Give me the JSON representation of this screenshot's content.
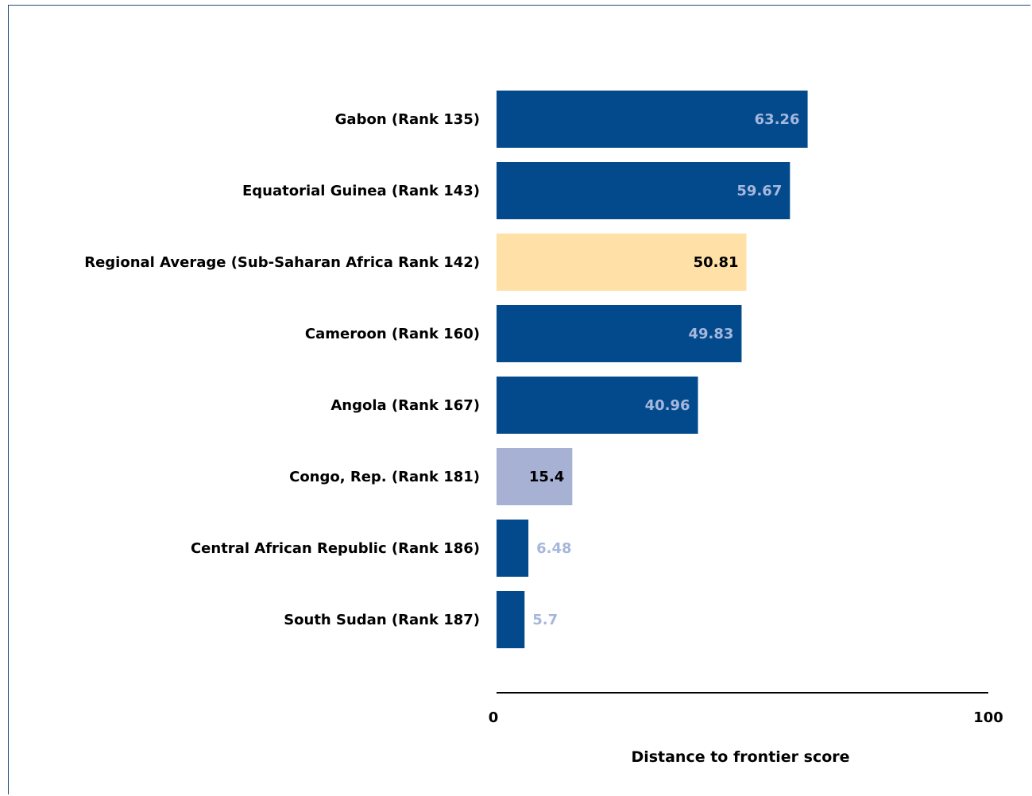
{
  "chart_data": {
    "type": "bar",
    "orientation": "horizontal",
    "categories": [
      "Gabon (Rank 135)",
      "Equatorial Guinea (Rank 143)",
      "Regional Average (Sub-Saharan Africa Rank 142)",
      "Cameroon (Rank 160)",
      "Angola (Rank 167)",
      "Congo, Rep. (Rank 181)",
      "Central African Republic (Rank 186)",
      "South Sudan (Rank 187)"
    ],
    "values": [
      63.26,
      59.67,
      50.81,
      49.83,
      40.96,
      15.4,
      6.48,
      5.7
    ],
    "value_labels": [
      "63.26",
      "59.67",
      "50.81",
      "49.83",
      "40.96",
      "15.4",
      "6.48",
      "5.7"
    ],
    "bar_colors": [
      "#034a8c",
      "#034a8c",
      "#ffe0a6",
      "#034a8c",
      "#034a8c",
      "#a6b1d4",
      "#034a8c",
      "#034a8c"
    ],
    "label_colors": [
      "#a6b7dc",
      "#a6b7dc",
      "#000000",
      "#a6b7dc",
      "#a6b7dc",
      "#000000",
      "#a6b7dc",
      "#a6b7dc"
    ],
    "xlabel": "Distance to frontier score",
    "xlim": [
      0,
      100
    ],
    "x_ticks": [
      "0",
      "100"
    ],
    "grid": false,
    "legend": "none"
  }
}
